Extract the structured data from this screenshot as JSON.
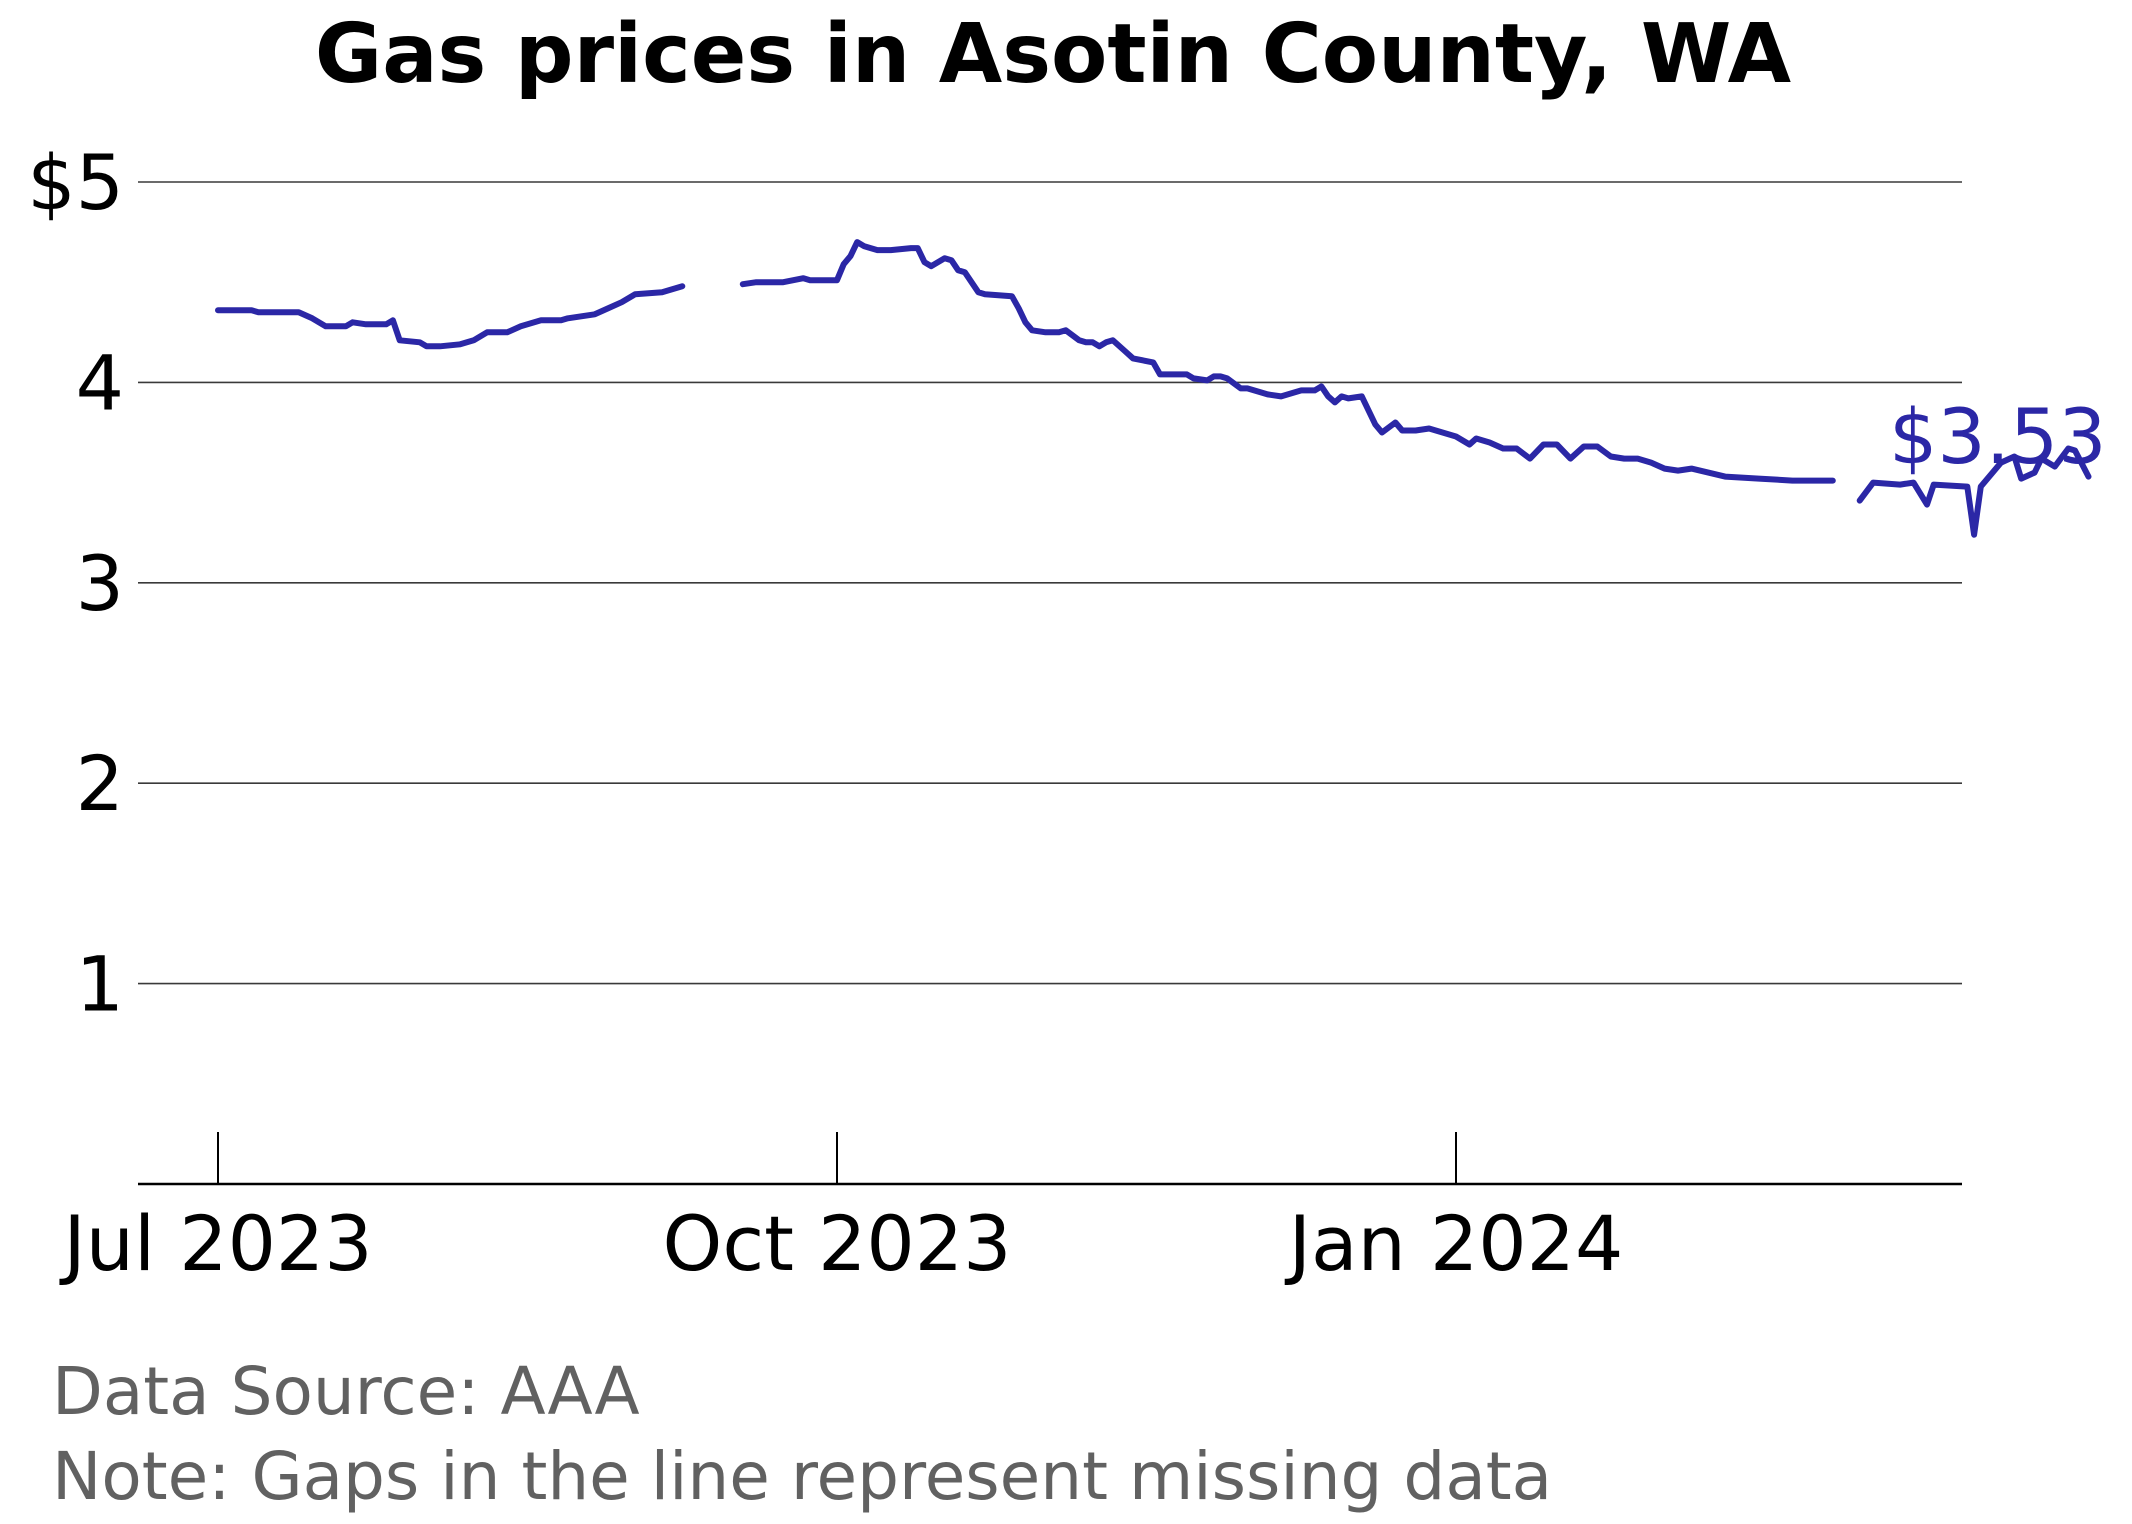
{
  "chart_data": {
    "type": "line",
    "title": "Gas prices in Asotin County, WA",
    "xlabel": "",
    "ylabel": "",
    "x_tick_labels": [
      "Jul 2023",
      "Oct 2023",
      "Jan 2024"
    ],
    "x_tick_dates": [
      "2023-07-01",
      "2023-10-01",
      "2024-01-01"
    ],
    "y_tick_labels": [
      "$5",
      "4",
      "3",
      "2",
      "1"
    ],
    "y_tick_values": [
      5,
      4,
      3,
      2,
      1
    ],
    "ylim": [
      0,
      5.2
    ],
    "xlim": [
      "2023-06-20",
      "2024-04-08"
    ],
    "grid": true,
    "line_color": "#2b27a6",
    "end_label": "$3.53",
    "footer": {
      "source": "Data Source: AAA",
      "note": "Note: Gaps in the line represent missing data"
    },
    "series": [
      {
        "segments": [
          {
            "x": [
              "2023-07-01",
              "2023-07-06",
              "2023-07-07",
              "2023-07-13",
              "2023-07-15",
              "2023-07-17",
              "2023-07-20",
              "2023-07-21",
              "2023-07-23",
              "2023-07-26",
              "2023-07-27",
              "2023-07-28",
              "2023-07-31",
              "2023-08-01",
              "2023-08-03",
              "2023-08-06",
              "2023-08-08",
              "2023-08-10",
              "2023-08-13",
              "2023-08-15",
              "2023-08-18",
              "2023-08-21",
              "2023-08-22",
              "2023-08-24",
              "2023-08-26",
              "2023-08-28",
              "2023-08-30",
              "2023-09-01",
              "2023-09-05",
              "2023-09-06",
              "2023-09-08"
            ],
            "y": [
              4.36,
              4.36,
              4.35,
              4.35,
              4.32,
              4.28,
              4.28,
              4.3,
              4.29,
              4.29,
              4.31,
              4.21,
              4.2,
              4.18,
              4.18,
              4.19,
              4.21,
              4.25,
              4.25,
              4.28,
              4.31,
              4.31,
              4.32,
              4.33,
              4.34,
              4.37,
              4.4,
              4.44,
              4.45,
              4.46,
              4.48
            ]
          },
          {
            "x": [
              "2023-09-17",
              "2023-09-19",
              "2023-09-23",
              "2023-09-26",
              "2023-09-27",
              "2023-10-01",
              "2023-10-02",
              "2023-10-03",
              "2023-10-04",
              "2023-10-05",
              "2023-10-06",
              "2023-10-07",
              "2023-10-09",
              "2023-10-12",
              "2023-10-13",
              "2023-10-14",
              "2023-10-15",
              "2023-10-17",
              "2023-10-18",
              "2023-10-19",
              "2023-10-20",
              "2023-10-22",
              "2023-10-23",
              "2023-10-27",
              "2023-10-28",
              "2023-10-29",
              "2023-10-30",
              "2023-11-01",
              "2023-11-03",
              "2023-11-04",
              "2023-11-06",
              "2023-11-07",
              "2023-11-08",
              "2023-11-09",
              "2023-11-10",
              "2023-11-11",
              "2023-11-13",
              "2023-11-14",
              "2023-11-17",
              "2023-11-18",
              "2023-11-20",
              "2023-11-22",
              "2023-11-23",
              "2023-11-25",
              "2023-11-26",
              "2023-11-27",
              "2023-11-28",
              "2023-11-30",
              "2023-12-01",
              "2023-12-03",
              "2023-12-04",
              "2023-12-06",
              "2023-12-08",
              "2023-12-09",
              "2023-12-11",
              "2023-12-12",
              "2023-12-13",
              "2023-12-14",
              "2023-12-15",
              "2023-12-16",
              "2023-12-18",
              "2023-12-20",
              "2023-12-21",
              "2023-12-23",
              "2023-12-24",
              "2023-12-26",
              "2023-12-28",
              "2023-12-29",
              "2024-01-01",
              "2024-01-03",
              "2024-01-04",
              "2024-01-06",
              "2024-01-08",
              "2024-01-10",
              "2024-01-12",
              "2024-01-14",
              "2024-01-16",
              "2024-01-18",
              "2024-01-20",
              "2024-01-22",
              "2024-01-24",
              "2024-01-26",
              "2024-01-28",
              "2024-01-30",
              "2024-02-01",
              "2024-02-03",
              "2024-02-05",
              "2024-02-10",
              "2024-02-15",
              "2024-02-20",
              "2024-02-26"
            ],
            "y": [
              4.49,
              4.5,
              4.5,
              4.52,
              4.51,
              4.51,
              4.59,
              4.63,
              4.7,
              4.68,
              4.67,
              4.66,
              4.66,
              4.67,
              4.67,
              4.6,
              4.58,
              4.62,
              4.61,
              4.56,
              4.55,
              4.45,
              4.44,
              4.43,
              4.37,
              4.3,
              4.26,
              4.25,
              4.25,
              4.26,
              4.21,
              4.2,
              4.2,
              4.18,
              4.2,
              4.21,
              4.15,
              4.12,
              4.1,
              4.04,
              4.04,
              4.04,
              4.02,
              4.01,
              4.03,
              4.03,
              4.02,
              3.97,
              3.97,
              3.95,
              3.94,
              3.93,
              3.95,
              3.96,
              3.96,
              3.98,
              3.93,
              3.9,
              3.93,
              3.92,
              3.93,
              3.79,
              3.75,
              3.8,
              3.76,
              3.76,
              3.77,
              3.76,
              3.73,
              3.69,
              3.72,
              3.7,
              3.67,
              3.67,
              3.62,
              3.69,
              3.69,
              3.62,
              3.68,
              3.68,
              3.63,
              3.62,
              3.62,
              3.6,
              3.57,
              3.56,
              3.57,
              3.53,
              3.52,
              3.51,
              3.51
            ]
          },
          {
            "x": [
              "2024-03-01",
              "2024-03-03",
              "2024-03-07",
              "2024-03-09",
              "2024-03-11",
              "2024-03-12",
              "2024-03-17",
              "2024-03-18",
              "2024-03-19",
              "2024-03-21",
              "2024-03-22",
              "2024-03-24",
              "2024-03-25",
              "2024-03-27",
              "2024-03-28",
              "2024-03-29",
              "2024-03-30",
              "2024-04-01",
              "2024-04-02",
              "2024-04-04"
            ],
            "y": [
              3.41,
              3.5,
              3.49,
              3.5,
              3.39,
              3.49,
              3.48,
              3.24,
              3.48,
              3.56,
              3.6,
              3.63,
              3.52,
              3.55,
              3.62,
              3.6,
              3.58,
              3.67,
              3.66,
              3.53
            ]
          }
        ]
      }
    ]
  }
}
